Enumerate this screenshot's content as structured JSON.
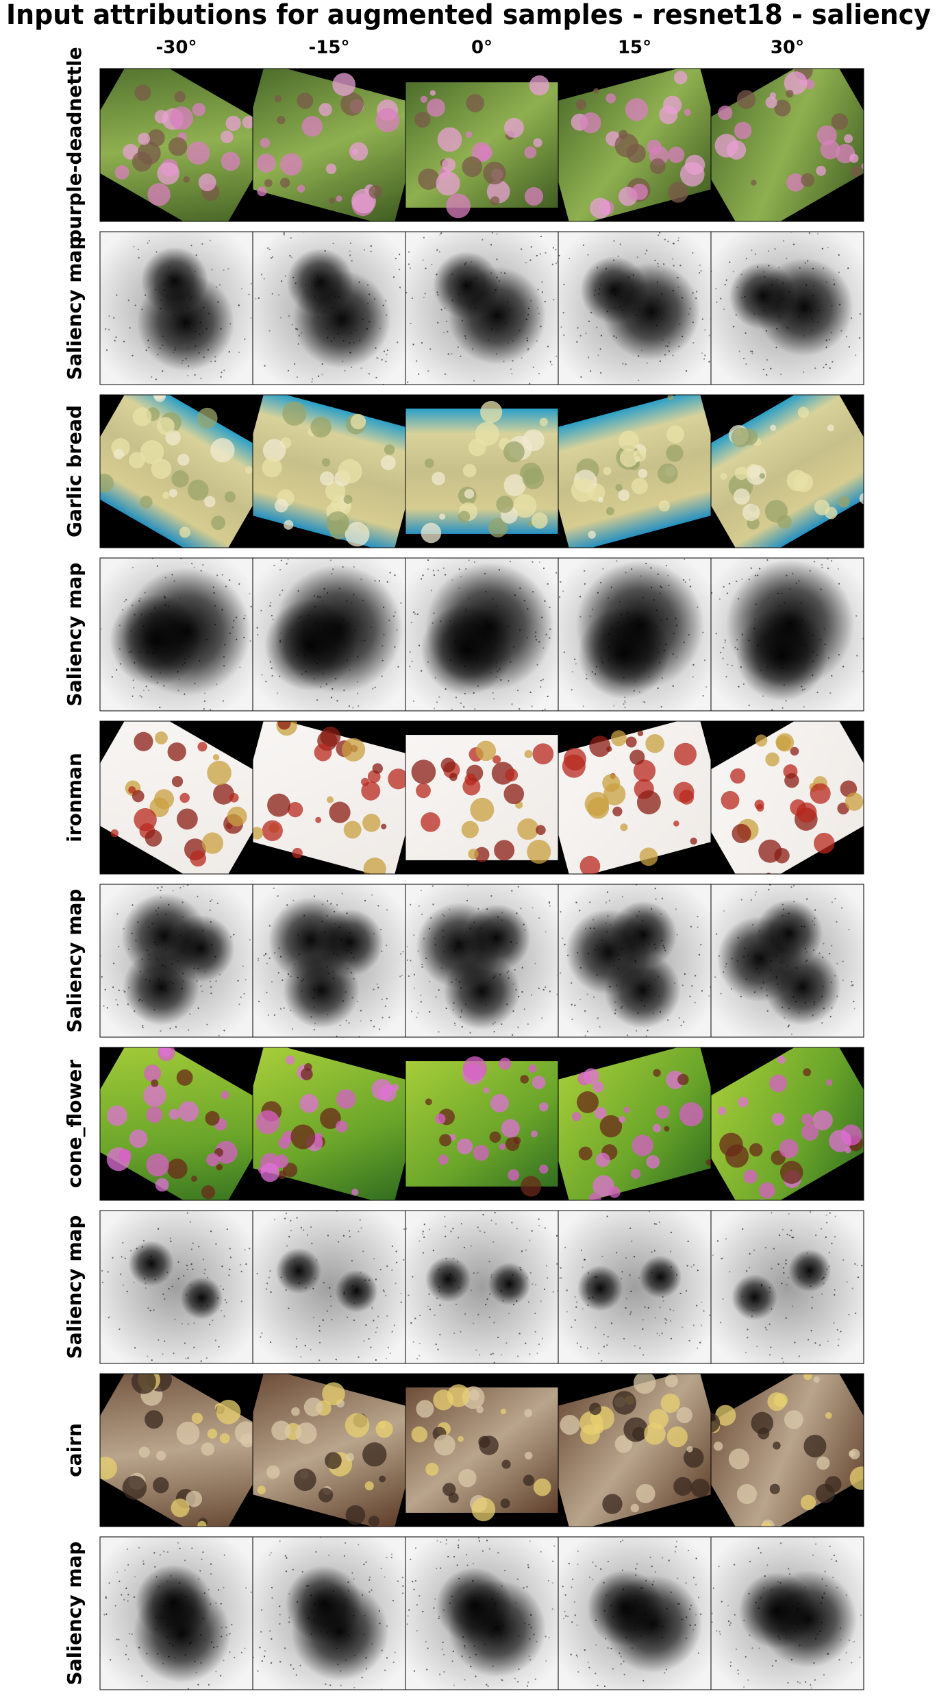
{
  "title": "Input attributions for augmented samples - resnet18 - saliency",
  "columns": [
    "-30°",
    "-15°",
    "0°",
    "15°",
    "30°"
  ],
  "rows": [
    {
      "label": "purple-deadnettle"
    },
    {
      "label": "Saliency map"
    },
    {
      "label": "Garlic bread"
    },
    {
      "label": "Saliency map"
    },
    {
      "label": "ironman"
    },
    {
      "label": "Saliency map"
    },
    {
      "label": "cone_flower"
    },
    {
      "label": "Saliency map"
    },
    {
      "label": "cairn"
    },
    {
      "label": "Saliency map"
    }
  ]
}
